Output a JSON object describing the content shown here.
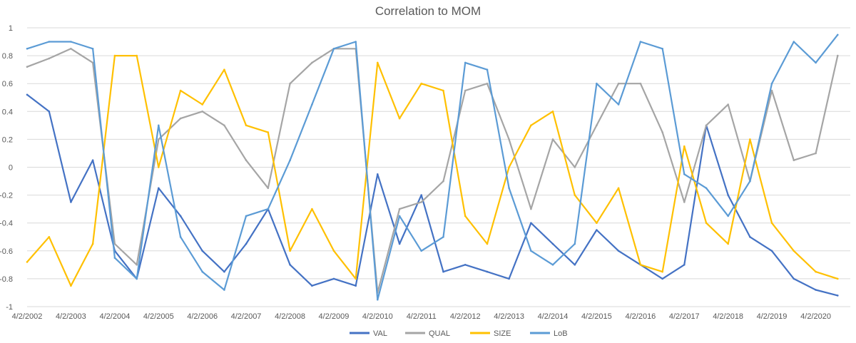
{
  "chart_data": {
    "type": "line",
    "title": "Correlation to MOM",
    "xlabel": "",
    "ylabel": "",
    "ylim": [
      -1,
      1
    ],
    "yticks": [
      1,
      0.8,
      0.6,
      0.4,
      0.2,
      0,
      -0.2,
      -0.4,
      -0.6,
      -0.8,
      -1
    ],
    "ytick_labels": [
      "1",
      "0.8",
      "0.6",
      "0.4",
      "0.2",
      "0",
      "-0.2",
      "-0.4",
      "-0.6",
      "-0.8",
      "-1"
    ],
    "xlim": [
      "2002-04-02",
      "2021-01-15"
    ],
    "x_tick_labels": [
      "4/2/2002",
      "4/2/2003",
      "4/2/2004",
      "4/2/2005",
      "4/2/2006",
      "4/2/2007",
      "4/2/2008",
      "4/2/2009",
      "4/2/2010",
      "4/2/2011",
      "4/2/2012",
      "4/2/2013",
      "4/2/2014",
      "4/2/2015",
      "4/2/2016",
      "4/2/2017",
      "4/2/2018",
      "4/2/2019",
      "4/2/2020"
    ],
    "grid": "horizontal",
    "legend_position": "bottom",
    "colors": {
      "VAL": "#4472c4",
      "QUAL": "#a5a5a5",
      "SIZE": "#ffc000",
      "LoB": "#5b9bd5"
    },
    "x": [
      "2002-04-02",
      "2002-10-02",
      "2003-04-02",
      "2003-10-02",
      "2004-04-02",
      "2004-10-02",
      "2005-04-02",
      "2005-10-02",
      "2006-04-02",
      "2006-10-02",
      "2007-04-02",
      "2007-10-02",
      "2008-04-02",
      "2008-10-02",
      "2009-04-02",
      "2009-10-02",
      "2010-04-02",
      "2010-10-02",
      "2011-04-02",
      "2011-10-02",
      "2012-04-02",
      "2012-10-02",
      "2013-04-02",
      "2013-10-02",
      "2014-04-02",
      "2014-10-02",
      "2015-04-02",
      "2015-10-02",
      "2016-04-02",
      "2016-10-02",
      "2017-04-02",
      "2017-10-02",
      "2018-04-02",
      "2018-10-02",
      "2019-04-02",
      "2019-10-02",
      "2020-04-02",
      "2020-10-02"
    ],
    "series": [
      {
        "name": "VAL",
        "values": [
          0.52,
          0.4,
          -0.25,
          0.05,
          -0.6,
          -0.8,
          -0.15,
          -0.35,
          -0.6,
          -0.75,
          -0.55,
          -0.3,
          -0.7,
          -0.85,
          -0.8,
          -0.85,
          -0.05,
          -0.55,
          -0.2,
          -0.75,
          -0.7,
          -0.75,
          -0.8,
          -0.4,
          -0.55,
          -0.7,
          -0.45,
          -0.6,
          -0.7,
          -0.8,
          -0.7,
          0.3,
          -0.2,
          -0.5,
          -0.6,
          -0.8,
          -0.88,
          -0.92
        ]
      },
      {
        "name": "QUAL",
        "values": [
          0.72,
          0.78,
          0.85,
          0.75,
          -0.55,
          -0.7,
          0.2,
          0.35,
          0.4,
          0.3,
          0.05,
          -0.15,
          0.6,
          0.75,
          0.85,
          0.85,
          -0.9,
          -0.3,
          -0.25,
          -0.1,
          0.55,
          0.6,
          0.2,
          -0.3,
          0.2,
          0.0,
          0.3,
          0.6,
          0.6,
          0.25,
          -0.25,
          0.3,
          0.45,
          -0.1,
          0.55,
          0.05,
          0.1,
          0.8
        ]
      },
      {
        "name": "SIZE",
        "values": [
          -0.68,
          -0.5,
          -0.85,
          -0.55,
          0.8,
          0.8,
          0.0,
          0.55,
          0.45,
          0.7,
          0.3,
          0.25,
          -0.6,
          -0.3,
          -0.6,
          -0.8,
          0.75,
          0.35,
          0.6,
          0.55,
          -0.35,
          -0.55,
          0.0,
          0.3,
          0.4,
          -0.2,
          -0.4,
          -0.15,
          -0.7,
          -0.75,
          0.15,
          -0.4,
          -0.55,
          0.2,
          -0.4,
          -0.6,
          -0.75,
          -0.8
        ]
      },
      {
        "name": "LoB",
        "values": [
          0.85,
          0.9,
          0.9,
          0.85,
          -0.65,
          -0.8,
          0.3,
          -0.5,
          -0.75,
          -0.88,
          -0.35,
          -0.3,
          0.05,
          0.45,
          0.85,
          0.9,
          -0.95,
          -0.35,
          -0.6,
          -0.5,
          0.75,
          0.7,
          -0.15,
          -0.6,
          -0.7,
          -0.55,
          0.6,
          0.45,
          0.9,
          0.85,
          -0.05,
          -0.15,
          -0.35,
          -0.1,
          0.6,
          0.9,
          0.75,
          0.95
        ]
      }
    ]
  }
}
